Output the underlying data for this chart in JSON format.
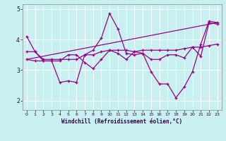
{
  "xlabel": "Windchill (Refroidissement éolien,°C)",
  "background_color": "#c8f0f0",
  "line_color": "#990088",
  "grid_color": "#ffffff",
  "ylim": [
    1.7,
    5.15
  ],
  "xlim": [
    -0.5,
    23.5
  ],
  "yticks": [
    2,
    3,
    4,
    5
  ],
  "xticks": [
    0,
    1,
    2,
    3,
    4,
    5,
    6,
    7,
    8,
    9,
    10,
    11,
    12,
    13,
    14,
    15,
    16,
    17,
    18,
    19,
    20,
    21,
    22,
    23
  ],
  "series": [
    {
      "x": [
        0,
        1,
        2,
        3,
        4,
        5,
        6,
        7,
        8,
        9,
        10,
        11,
        12,
        13,
        14,
        15,
        16,
        17,
        18,
        19,
        20,
        21,
        22,
        23
      ],
      "y": [
        3.6,
        3.6,
        3.35,
        3.35,
        3.35,
        3.35,
        3.35,
        3.5,
        3.5,
        3.6,
        3.65,
        3.65,
        3.65,
        3.6,
        3.65,
        3.65,
        3.65,
        3.65,
        3.65,
        3.7,
        3.75,
        3.75,
        3.8,
        3.85
      ]
    },
    {
      "x": [
        0,
        1,
        2,
        3,
        4,
        5,
        6,
        7,
        8,
        9,
        10,
        11,
        12,
        13,
        14,
        15,
        16,
        17,
        18,
        19,
        20,
        21,
        22,
        23
      ],
      "y": [
        4.1,
        3.6,
        3.3,
        3.3,
        2.6,
        2.65,
        2.6,
        3.5,
        3.65,
        4.05,
        4.85,
        4.35,
        3.55,
        3.5,
        3.55,
        2.95,
        2.55,
        2.55,
        2.1,
        2.45,
        2.95,
        3.85,
        4.6,
        4.55
      ]
    },
    {
      "x": [
        0,
        1,
        2,
        3,
        4,
        5,
        6,
        7,
        8,
        9,
        10,
        11,
        12,
        13,
        14,
        15,
        16,
        17,
        18,
        19,
        20,
        21,
        22,
        23
      ],
      "y": [
        3.35,
        3.3,
        3.3,
        3.3,
        3.3,
        3.5,
        3.5,
        3.25,
        3.05,
        3.35,
        3.65,
        3.55,
        3.35,
        3.6,
        3.55,
        3.35,
        3.35,
        3.5,
        3.5,
        3.4,
        3.75,
        3.45,
        4.55,
        4.5
      ]
    },
    {
      "x": [
        0,
        23
      ],
      "y": [
        3.35,
        4.55
      ]
    }
  ]
}
